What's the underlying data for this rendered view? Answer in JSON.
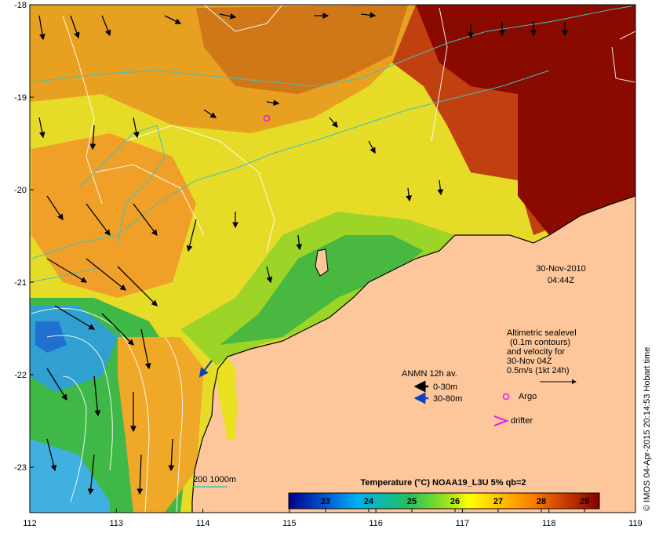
{
  "map": {
    "lon_ticks": [
      "112",
      "113",
      "114",
      "115",
      "116",
      "117",
      "118",
      "119"
    ],
    "lat_ticks": [
      "-18",
      "-19",
      "-20",
      "-21",
      "-22",
      "-23"
    ]
  },
  "timestamp": {
    "date": "30-Nov-2010",
    "time": "04:44Z"
  },
  "altimetry": {
    "lines": [
      "Altimetric sealevel",
      "(0.1m contours)",
      "and velocity for",
      "30-Nov 04Z",
      "0.5m/s (1kt 24h)"
    ]
  },
  "moorings": {
    "title": "ANMN 12h av.",
    "shallow_label": "0-30m",
    "deep_label": "30-80m",
    "shallow_color": "#000000",
    "deep_color": "#1040c0"
  },
  "markers": {
    "argo_label": "Argo",
    "drifter_label": "drifter",
    "argo_color": "#e020e0",
    "drifter_color": "#e020e0"
  },
  "bathymetry": {
    "label": "200  1000m",
    "color": "#40c0c0"
  },
  "colorbar": {
    "title": "Temperature (°C) NOAA19_L3U 5% qb=2",
    "ticks": [
      "23",
      "24",
      "25",
      "26",
      "27",
      "28",
      "29"
    ],
    "stops": [
      "#00008b",
      "#0050d0",
      "#00b0f0",
      "#20c060",
      "#90e020",
      "#ffff00",
      "#ffc000",
      "#ff8000",
      "#d04000",
      "#800000"
    ]
  },
  "credit": "© IMOS 04-Apr-2015 20:14:53 Hobart time",
  "colors": {
    "land": "#fdc79b",
    "warm": "#8b0a00",
    "hot": "#c83a00",
    "orange": "#f0a020",
    "yellow": "#e8e020",
    "green": "#30b040",
    "cool": "#30a0e0"
  }
}
